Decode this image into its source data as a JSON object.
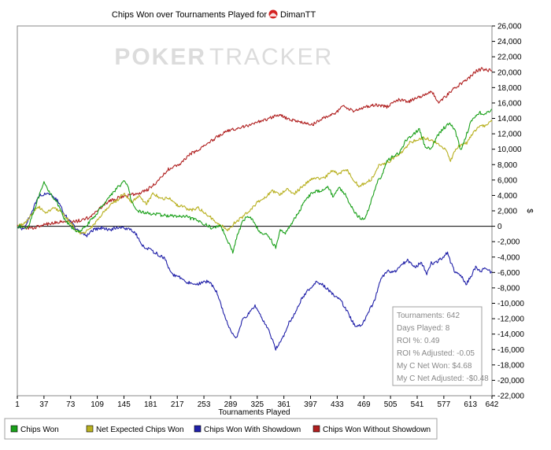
{
  "chart_data": {
    "type": "line",
    "title": "Chips Won over Tournaments Played for",
    "player": "DimanTT",
    "watermark": {
      "left": "POKER",
      "right": "TRACKER"
    },
    "xlabel": "Tournaments Played",
    "ylabel": "$",
    "xlim": [
      1,
      642
    ],
    "ylim": [
      -22000,
      26000
    ],
    "x_ticks": [
      1,
      37,
      73,
      109,
      145,
      181,
      217,
      253,
      289,
      325,
      361,
      397,
      433,
      469,
      505,
      541,
      577,
      613,
      642
    ],
    "y_ticks": [
      26000,
      24000,
      22000,
      20000,
      18000,
      16000,
      14000,
      12000,
      10000,
      8000,
      6000,
      4000,
      2000,
      0,
      -2000,
      -4000,
      -6000,
      -8000,
      -10000,
      -12000,
      -14000,
      -16000,
      -18000,
      -20000,
      -22000
    ],
    "y_tick_labels": [
      "26,000",
      "24,000",
      "22,000",
      "20,000",
      "18,000",
      "16,000",
      "14,000",
      "12,000",
      "10,000",
      "8,000",
      "6,000",
      "4,000",
      "2,000",
      "0",
      "-2,000",
      "-4,000",
      "-6,000",
      "-8,000",
      "-10,000",
      "-12,000",
      "-14,000",
      "-16,000",
      "-18,000",
      "-20,000",
      "-22,000"
    ],
    "grid": false,
    "legend_position": "bottom",
    "series": [
      {
        "name": "Chips Won",
        "color": "#1aa01a",
        "points": [
          [
            1,
            0
          ],
          [
            15,
            -200
          ],
          [
            30,
            3800
          ],
          [
            37,
            5600
          ],
          [
            45,
            4400
          ],
          [
            55,
            3000
          ],
          [
            65,
            800
          ],
          [
            75,
            -200
          ],
          [
            85,
            -800
          ],
          [
            95,
            200
          ],
          [
            105,
            1200
          ],
          [
            115,
            2600
          ],
          [
            125,
            3800
          ],
          [
            135,
            4900
          ],
          [
            145,
            5800
          ],
          [
            150,
            5400
          ],
          [
            155,
            3200
          ],
          [
            160,
            2200
          ],
          [
            170,
            1800
          ],
          [
            185,
            1600
          ],
          [
            200,
            1400
          ],
          [
            215,
            1300
          ],
          [
            230,
            1200
          ],
          [
            250,
            500
          ],
          [
            265,
            -300
          ],
          [
            275,
            200
          ],
          [
            285,
            -1800
          ],
          [
            292,
            -3400
          ],
          [
            298,
            -1200
          ],
          [
            305,
            500
          ],
          [
            312,
            1400
          ],
          [
            320,
            700
          ],
          [
            328,
            -800
          ],
          [
            340,
            -1200
          ],
          [
            350,
            -2800
          ],
          [
            356,
            -500
          ],
          [
            362,
            -1000
          ],
          [
            372,
            500
          ],
          [
            380,
            1600
          ],
          [
            390,
            3500
          ],
          [
            400,
            4400
          ],
          [
            410,
            4600
          ],
          [
            420,
            5200
          ],
          [
            428,
            3800
          ],
          [
            435,
            5100
          ],
          [
            445,
            4000
          ],
          [
            452,
            2500
          ],
          [
            462,
            1200
          ],
          [
            470,
            800
          ],
          [
            478,
            3000
          ],
          [
            486,
            5500
          ],
          [
            493,
            6600
          ],
          [
            500,
            8400
          ],
          [
            510,
            9200
          ],
          [
            518,
            9600
          ],
          [
            526,
            11200
          ],
          [
            534,
            11800
          ],
          [
            544,
            12600
          ],
          [
            552,
            10200
          ],
          [
            560,
            10000
          ],
          [
            568,
            11700
          ],
          [
            576,
            12700
          ],
          [
            586,
            13400
          ],
          [
            593,
            12200
          ],
          [
            600,
            9800
          ],
          [
            607,
            11800
          ],
          [
            614,
            13600
          ],
          [
            620,
            14400
          ],
          [
            625,
            14800
          ],
          [
            632,
            14400
          ],
          [
            642,
            15200
          ]
        ]
      },
      {
        "name": "Net Expected Chips Won",
        "color": "#b8b020",
        "points": [
          [
            1,
            0
          ],
          [
            12,
            500
          ],
          [
            22,
            1800
          ],
          [
            30,
            2500
          ],
          [
            40,
            1800
          ],
          [
            50,
            2400
          ],
          [
            60,
            1800
          ],
          [
            70,
            800
          ],
          [
            78,
            -200
          ],
          [
            88,
            -1000
          ],
          [
            95,
            -600
          ],
          [
            105,
            300
          ],
          [
            115,
            1500
          ],
          [
            125,
            2600
          ],
          [
            135,
            3300
          ],
          [
            145,
            4300
          ],
          [
            155,
            3000
          ],
          [
            165,
            4000
          ],
          [
            175,
            2900
          ],
          [
            185,
            4300
          ],
          [
            195,
            3500
          ],
          [
            205,
            3700
          ],
          [
            215,
            2800
          ],
          [
            225,
            2500
          ],
          [
            235,
            2100
          ],
          [
            245,
            2400
          ],
          [
            255,
            1700
          ],
          [
            265,
            900
          ],
          [
            275,
            200
          ],
          [
            285,
            -500
          ],
          [
            295,
            500
          ],
          [
            305,
            1200
          ],
          [
            315,
            2100
          ],
          [
            325,
            3100
          ],
          [
            335,
            3700
          ],
          [
            345,
            4600
          ],
          [
            355,
            4100
          ],
          [
            365,
            4900
          ],
          [
            375,
            4200
          ],
          [
            385,
            5100
          ],
          [
            395,
            5900
          ],
          [
            405,
            6300
          ],
          [
            415,
            6200
          ],
          [
            425,
            7200
          ],
          [
            435,
            6800
          ],
          [
            445,
            7500
          ],
          [
            455,
            6100
          ],
          [
            462,
            5200
          ],
          [
            470,
            5500
          ],
          [
            480,
            6200
          ],
          [
            490,
            8000
          ],
          [
            500,
            8200
          ],
          [
            510,
            8900
          ],
          [
            520,
            9500
          ],
          [
            530,
            10800
          ],
          [
            540,
            11200
          ],
          [
            550,
            11500
          ],
          [
            560,
            11100
          ],
          [
            570,
            10700
          ],
          [
            580,
            9900
          ],
          [
            586,
            8400
          ],
          [
            592,
            9900
          ],
          [
            600,
            10600
          ],
          [
            608,
            10800
          ],
          [
            616,
            12100
          ],
          [
            624,
            12800
          ],
          [
            632,
            13100
          ],
          [
            642,
            13600
          ]
        ]
      },
      {
        "name": "Chips Won With Showdown",
        "color": "#2020a8",
        "points": [
          [
            1,
            0
          ],
          [
            10,
            -400
          ],
          [
            20,
            1800
          ],
          [
            30,
            3900
          ],
          [
            37,
            4200
          ],
          [
            45,
            4300
          ],
          [
            55,
            3300
          ],
          [
            65,
            1500
          ],
          [
            73,
            500
          ],
          [
            85,
            -800
          ],
          [
            95,
            -1200
          ],
          [
            105,
            -400
          ],
          [
            115,
            -200
          ],
          [
            125,
            -500
          ],
          [
            135,
            -200
          ],
          [
            145,
            -200
          ],
          [
            150,
            -300
          ],
          [
            160,
            -800
          ],
          [
            170,
            -2500
          ],
          [
            185,
            -3300
          ],
          [
            200,
            -4200
          ],
          [
            210,
            -6300
          ],
          [
            220,
            -6600
          ],
          [
            230,
            -7300
          ],
          [
            245,
            -7500
          ],
          [
            260,
            -7100
          ],
          [
            270,
            -8500
          ],
          [
            280,
            -11300
          ],
          [
            290,
            -13800
          ],
          [
            297,
            -14500
          ],
          [
            305,
            -12200
          ],
          [
            315,
            -11200
          ],
          [
            322,
            -10300
          ],
          [
            330,
            -11800
          ],
          [
            340,
            -13400
          ],
          [
            350,
            -15900
          ],
          [
            358,
            -14800
          ],
          [
            368,
            -12500
          ],
          [
            376,
            -11300
          ],
          [
            386,
            -9200
          ],
          [
            396,
            -8100
          ],
          [
            406,
            -7200
          ],
          [
            416,
            -7800
          ],
          [
            426,
            -8800
          ],
          [
            436,
            -9400
          ],
          [
            446,
            -11000
          ],
          [
            456,
            -12800
          ],
          [
            466,
            -13000
          ],
          [
            474,
            -11300
          ],
          [
            484,
            -9600
          ],
          [
            490,
            -7200
          ],
          [
            500,
            -5800
          ],
          [
            510,
            -6000
          ],
          [
            518,
            -5200
          ],
          [
            528,
            -4400
          ],
          [
            538,
            -5400
          ],
          [
            546,
            -4700
          ],
          [
            554,
            -6100
          ],
          [
            560,
            -4800
          ],
          [
            566,
            -4700
          ],
          [
            574,
            -4200
          ],
          [
            582,
            -3400
          ],
          [
            586,
            -4600
          ],
          [
            592,
            -6000
          ],
          [
            600,
            -6400
          ],
          [
            607,
            -7600
          ],
          [
            614,
            -6400
          ],
          [
            620,
            -5300
          ],
          [
            626,
            -5900
          ],
          [
            632,
            -5500
          ],
          [
            642,
            -6000
          ]
        ]
      },
      {
        "name": "Chips Won Without Showdown",
        "color": "#b02020",
        "points": [
          [
            1,
            0
          ],
          [
            20,
            -300
          ],
          [
            37,
            200
          ],
          [
            60,
            600
          ],
          [
            80,
            600
          ],
          [
            100,
            1200
          ],
          [
            120,
            3000
          ],
          [
            140,
            3800
          ],
          [
            160,
            4200
          ],
          [
            175,
            4600
          ],
          [
            190,
            5800
          ],
          [
            205,
            7400
          ],
          [
            220,
            8000
          ],
          [
            235,
            9400
          ],
          [
            250,
            10200
          ],
          [
            265,
            11200
          ],
          [
            280,
            12200
          ],
          [
            300,
            12800
          ],
          [
            320,
            13300
          ],
          [
            340,
            14000
          ],
          [
            355,
            14500
          ],
          [
            370,
            13800
          ],
          [
            385,
            13500
          ],
          [
            400,
            13200
          ],
          [
            415,
            14100
          ],
          [
            430,
            14600
          ],
          [
            440,
            15600
          ],
          [
            455,
            14900
          ],
          [
            470,
            15500
          ],
          [
            485,
            15800
          ],
          [
            500,
            15500
          ],
          [
            515,
            16400
          ],
          [
            530,
            16200
          ],
          [
            545,
            16800
          ],
          [
            560,
            17600
          ],
          [
            570,
            16000
          ],
          [
            580,
            16900
          ],
          [
            590,
            17800
          ],
          [
            600,
            18500
          ],
          [
            612,
            19300
          ],
          [
            620,
            20100
          ],
          [
            628,
            20400
          ],
          [
            642,
            20200
          ]
        ]
      }
    ]
  },
  "legend": [
    {
      "label": "Chips Won",
      "color": "#1aa01a"
    },
    {
      "label": "Net Expected Chips Won",
      "color": "#b8b020"
    },
    {
      "label": "Chips Won With Showdown",
      "color": "#2020a8"
    },
    {
      "label": "Chips Won Without Showdown",
      "color": "#b02020"
    }
  ],
  "stats": [
    "Tournaments: 642",
    "Days Played: 8",
    "ROI %: 0.49",
    "ROI % Adjusted: -0.05",
    "My C Net Won: $4.68",
    "My C Net Adjusted: -$0.48"
  ]
}
